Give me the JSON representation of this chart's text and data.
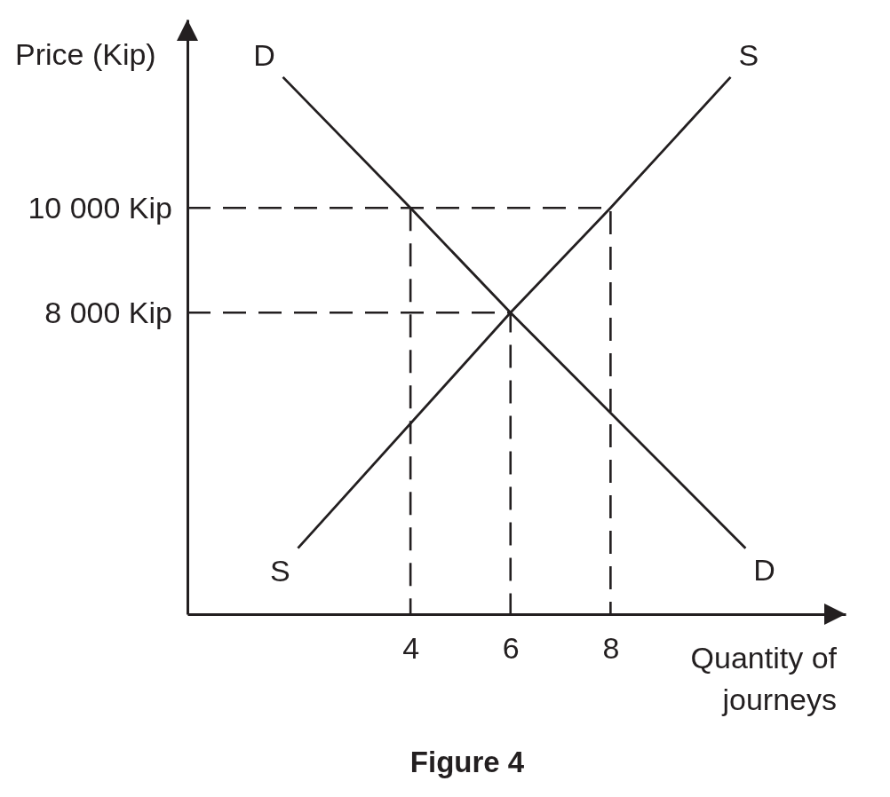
{
  "chart_data": {
    "type": "line",
    "title": "Figure 4",
    "xlabel": "Quantity of journeys",
    "ylabel": "Price (Kip)",
    "xlim": [
      -0.46,
      12.7
    ],
    "ylim": [
      2240,
      13600
    ],
    "xticks": [
      4,
      6,
      8
    ],
    "yticks": [
      {
        "value": 8000,
        "label": "8 000 Kip"
      },
      {
        "value": 10000,
        "label": "10 000 Kip"
      }
    ],
    "series": [
      {
        "name": "D",
        "color": "#231f20",
        "x": [
          1.45,
          4,
          6,
          10.7
        ],
        "values": [
          12500,
          10000,
          8000,
          3500
        ]
      },
      {
        "name": "S",
        "color": "#231f20",
        "x": [
          1.75,
          6,
          8,
          10.4
        ],
        "values": [
          3500,
          8000,
          10000,
          12500
        ]
      },
      {
        "color": "#231f20",
        "line_style": "dashed",
        "x": [
          -0.46,
          8,
          8
        ],
        "values": [
          10000,
          10000,
          2240
        ]
      },
      {
        "color": "#231f20",
        "line_style": "dashed",
        "x": [
          4,
          4
        ],
        "values": [
          10000,
          2240
        ]
      },
      {
        "color": "#231f20",
        "line_style": "dashed",
        "x": [
          -0.46,
          6,
          6
        ],
        "values": [
          8000,
          8000,
          2240
        ]
      }
    ]
  }
}
